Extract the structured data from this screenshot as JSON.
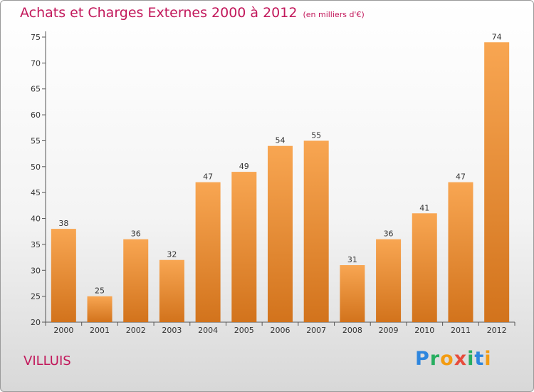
{
  "title": "Achats et Charges Externes 2000 à 2012",
  "unit": "(en milliers d'€)",
  "place": "VILLUIS",
  "logo": {
    "letters": [
      {
        "ch": "P",
        "color": "#2e86de"
      },
      {
        "ch": "r",
        "color": "#27ae60"
      },
      {
        "ch": "o",
        "color": "#f39c12"
      },
      {
        "ch": "x",
        "color": "#e74c3c"
      },
      {
        "ch": "i",
        "color": "#27ae60"
      },
      {
        "ch": "t",
        "color": "#2e86de"
      },
      {
        "ch": "i",
        "color": "#f39c12"
      }
    ]
  },
  "chart_data": {
    "type": "bar",
    "title": "Achats et Charges Externes 2000 à 2012",
    "subtitle": "(en milliers d'€)",
    "xlabel": "",
    "ylabel": "",
    "categories": [
      "2000",
      "2001",
      "2002",
      "2003",
      "2004",
      "2005",
      "2006",
      "2007",
      "2008",
      "2009",
      "2010",
      "2011",
      "2012"
    ],
    "values": [
      38,
      25,
      36,
      32,
      47,
      49,
      54,
      55,
      31,
      36,
      41,
      47,
      74
    ],
    "ylim": [
      20,
      75
    ],
    "yticks": [
      20,
      25,
      30,
      35,
      40,
      45,
      50,
      55,
      60,
      65,
      70,
      75
    ],
    "grid": false,
    "legend": "none",
    "colors": {
      "bar_top": "#f8a652",
      "bar_bottom": "#d2731c",
      "axis": "#555555",
      "text": "#333333",
      "title": "#c2185b"
    }
  }
}
